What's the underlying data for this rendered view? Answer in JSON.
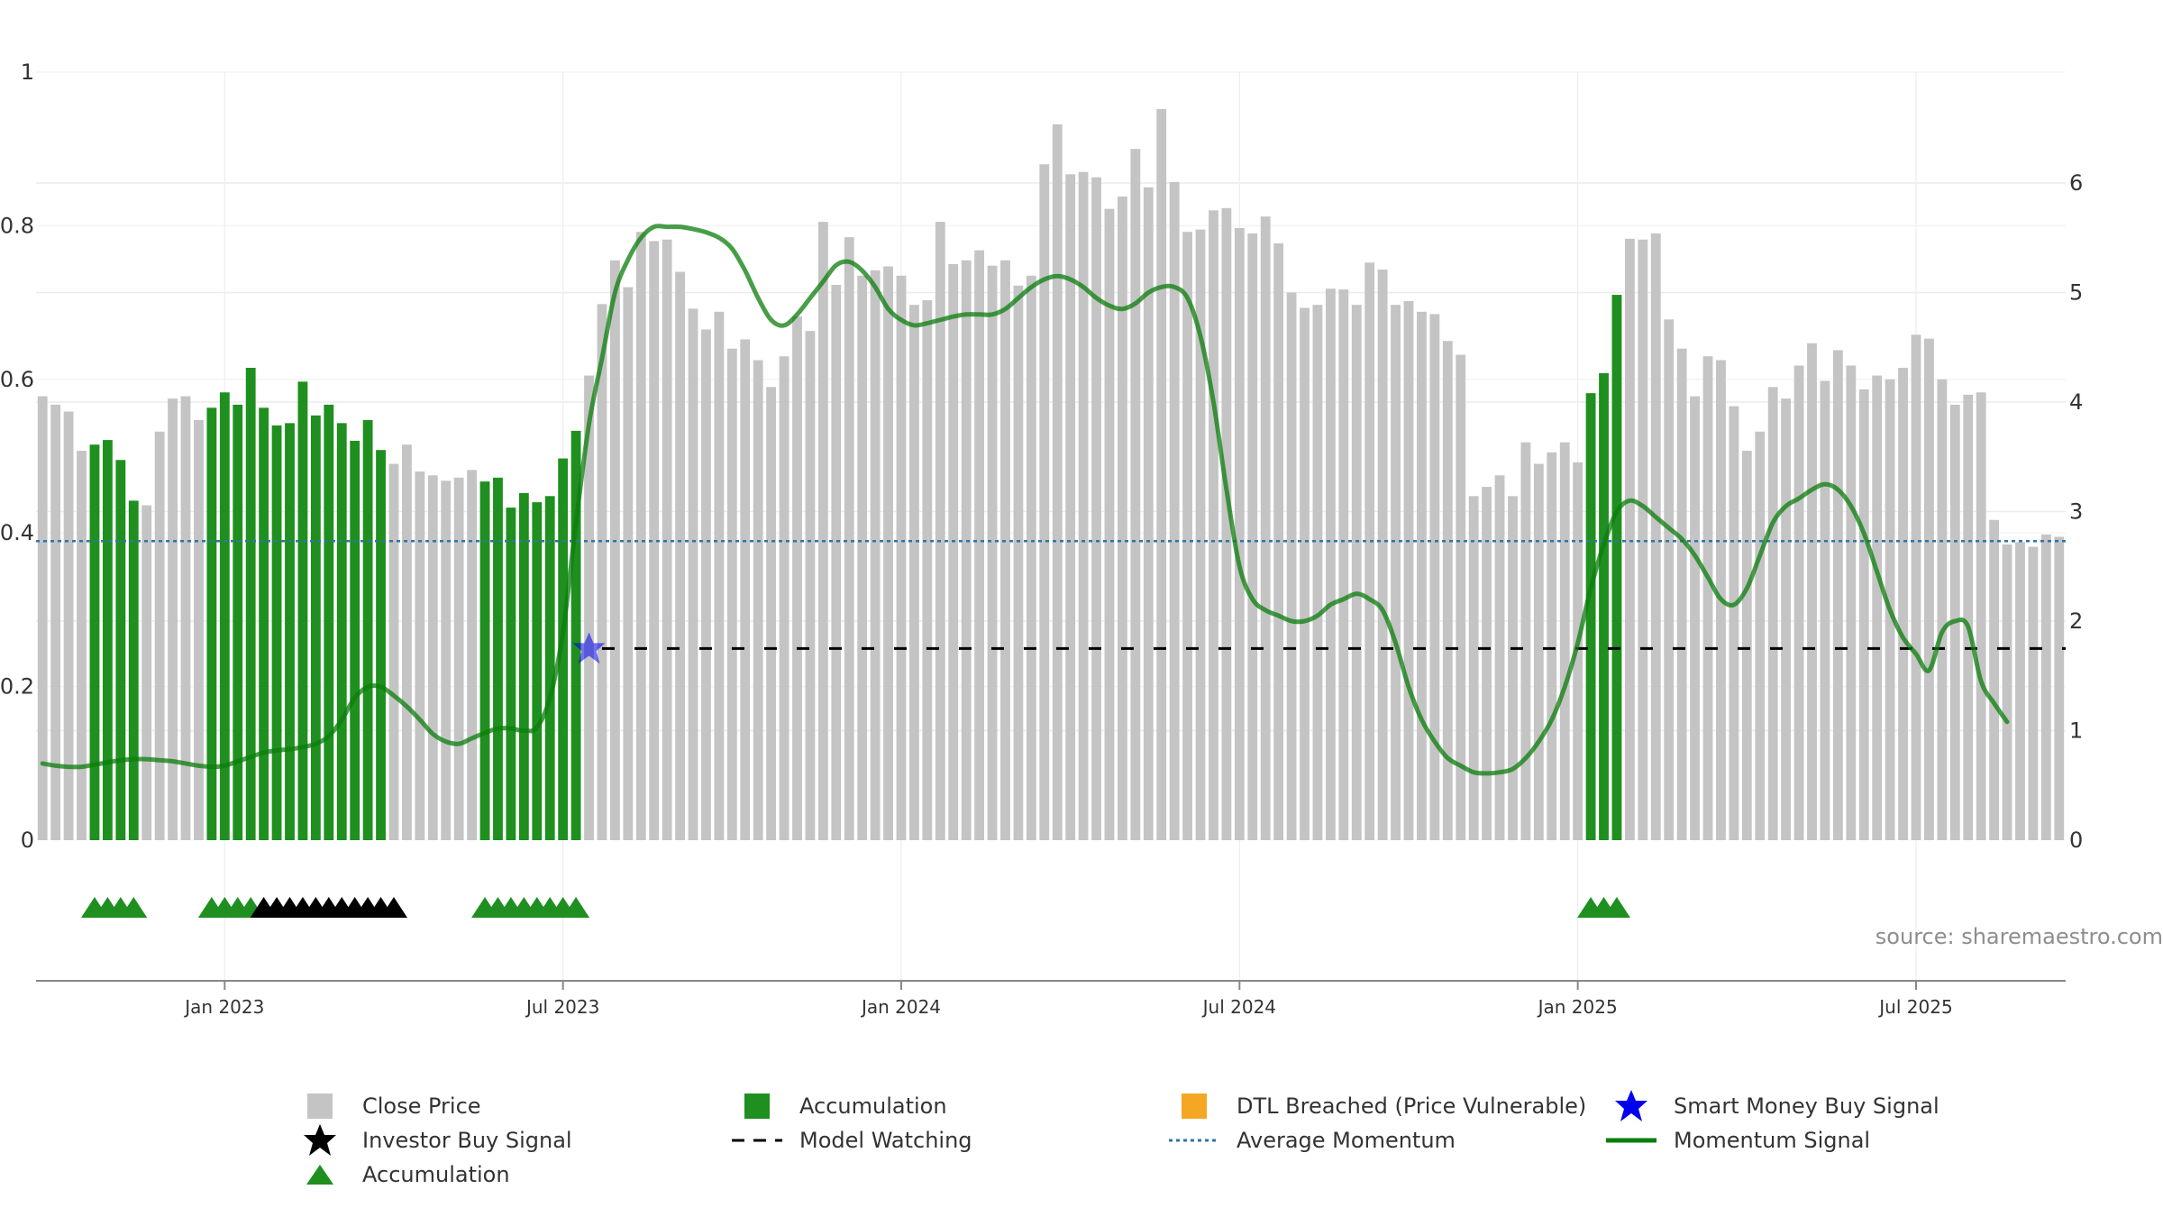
{
  "source_text": "source: sharemaestro.com",
  "colors": {
    "close_price": "#c4c4c4",
    "accumulation": "#1f8f1f",
    "dtl_breached": "#f5a623",
    "smart_money": "#0000ee",
    "investor": "#000000",
    "average_momentum": "#2e75a8",
    "momentum": "#0b7d0b",
    "model_watching": "#000000"
  },
  "legend": [
    {
      "label": "Close Price",
      "icon": "gray-square-icon"
    },
    {
      "label": "Accumulation",
      "icon": "green-square-icon"
    },
    {
      "label": "DTL Breached (Price Vulnerable)",
      "icon": "orange-square-icon"
    },
    {
      "label": "Smart Money Buy Signal",
      "icon": "blue-star-icon"
    },
    {
      "label": "Investor Buy Signal",
      "icon": "black-star-icon"
    },
    {
      "label": "Model Watching",
      "icon": "dashed-line-icon"
    },
    {
      "label": "Average Momentum",
      "icon": "dotted-line-icon"
    },
    {
      "label": "Momentum Signal",
      "icon": "solid-line-icon"
    },
    {
      "label": "Accumulation",
      "icon": "green-triangle-icon"
    }
  ],
  "chart_data": {
    "type": "bar",
    "x_axis": {
      "ticks": [
        "Jan 2023",
        "Jul 2023",
        "Jan 2024",
        "Jul 2024",
        "Jan 2025",
        "Jul 2025"
      ],
      "tick_bar_index": [
        14,
        40,
        66,
        92,
        118,
        144
      ]
    },
    "y_left": {
      "range": [
        0,
        1
      ],
      "ticks": [
        "0",
        "0.2",
        "0.4",
        "0.6",
        "0.8",
        "1"
      ]
    },
    "y_right": {
      "range": [
        0,
        7
      ],
      "ticks": [
        "0",
        "1",
        "2",
        "3",
        "4",
        "5",
        "6"
      ]
    },
    "grid": true,
    "legend_position": "bottom",
    "close_price": [
      0.578,
      0.567,
      0.558,
      0.507,
      0.515,
      0.521,
      0.495,
      0.442,
      0.436,
      0.532,
      0.575,
      0.578,
      0.547,
      0.563,
      0.583,
      0.567,
      0.615,
      0.563,
      0.54,
      0.543,
      0.597,
      0.553,
      0.567,
      0.543,
      0.52,
      0.547,
      0.508,
      0.49,
      0.515,
      0.48,
      0.475,
      0.468,
      0.472,
      0.482,
      0.467,
      0.472,
      0.433,
      0.452,
      0.44,
      0.448,
      0.497,
      0.533,
      0.605,
      0.698,
      0.755,
      0.72,
      0.792,
      0.78,
      0.782,
      0.74,
      0.692,
      0.665,
      0.688,
      0.64,
      0.652,
      0.625,
      0.59,
      0.63,
      0.682,
      0.663,
      0.805,
      0.723,
      0.785,
      0.735,
      0.742,
      0.747,
      0.735,
      0.697,
      0.703,
      0.805,
      0.75,
      0.755,
      0.768,
      0.748,
      0.755,
      0.722,
      0.735,
      0.88,
      0.932,
      0.867,
      0.87,
      0.863,
      0.822,
      0.838,
      0.9,
      0.85,
      0.952,
      0.857,
      0.792,
      0.795,
      0.82,
      0.823,
      0.797,
      0.79,
      0.812,
      0.777,
      0.713,
      0.693,
      0.697,
      0.718,
      0.717,
      0.697,
      0.752,
      0.743,
      0.697,
      0.702,
      0.688,
      0.685,
      0.65,
      0.632,
      0.448,
      0.46,
      0.475,
      0.448,
      0.518,
      0.49,
      0.505,
      0.518,
      0.492,
      0.582,
      0.608,
      0.71,
      0.783,
      0.782,
      0.79,
      0.678,
      0.64,
      0.578,
      0.63,
      0.625,
      0.565,
      0.507,
      0.532,
      0.59,
      0.575,
      0.618,
      0.647,
      0.598,
      0.638,
      0.618,
      0.587,
      0.605,
      0.6,
      0.615,
      0.658,
      0.653,
      0.6,
      0.567,
      0.58,
      0.583,
      0.417,
      0.385,
      0.388,
      0.382,
      0.398,
      0.395
    ],
    "accumulation_bar_indices": [
      4,
      5,
      6,
      7,
      13,
      14,
      15,
      16,
      17,
      18,
      19,
      20,
      21,
      22,
      23,
      24,
      25,
      26,
      34,
      35,
      36,
      37,
      38,
      39,
      40,
      41,
      119,
      120,
      121
    ],
    "momentum_signal": [
      0.7,
      0.68,
      0.67,
      0.67,
      0.69,
      0.71,
      0.73,
      0.74,
      0.74,
      0.73,
      0.72,
      0.7,
      0.68,
      0.67,
      0.68,
      0.72,
      0.76,
      0.8,
      0.82,
      0.83,
      0.85,
      0.88,
      0.95,
      1.1,
      1.3,
      1.4,
      1.4,
      1.32,
      1.22,
      1.1,
      0.97,
      0.9,
      0.88,
      0.93,
      0.98,
      1.02,
      1.02,
      1.0,
      1.03,
      1.3,
      1.9,
      2.9,
      3.8,
      4.4,
      5.0,
      5.3,
      5.5,
      5.6,
      5.6,
      5.6,
      5.58,
      5.55,
      5.5,
      5.4,
      5.2,
      4.95,
      4.75,
      4.7,
      4.8,
      4.95,
      5.1,
      5.25,
      5.28,
      5.2,
      5.05,
      4.85,
      4.75,
      4.7,
      4.72,
      4.75,
      4.78,
      4.8,
      4.8,
      4.8,
      4.85,
      4.95,
      5.05,
      5.12,
      5.15,
      5.12,
      5.05,
      4.95,
      4.88,
      4.85,
      4.9,
      5.0,
      5.05,
      5.05,
      4.95,
      4.6,
      4.0,
      3.2,
      2.5,
      2.2,
      2.1,
      2.05,
      2.0,
      2.0,
      2.05,
      2.15,
      2.2,
      2.25,
      2.2,
      2.1,
      1.8,
      1.4,
      1.1,
      0.9,
      0.75,
      0.68,
      0.62,
      0.61,
      0.62,
      0.65,
      0.75,
      0.9,
      1.1,
      1.4,
      1.8,
      2.3,
      2.7,
      3.0,
      3.1,
      3.05,
      2.95,
      2.85,
      2.75,
      2.6,
      2.4,
      2.2,
      2.15,
      2.3,
      2.6,
      2.9,
      3.05,
      3.12,
      3.2,
      3.25,
      3.2,
      3.05,
      2.8,
      2.45,
      2.1,
      1.85,
      1.7,
      1.55,
      1.9,
      2.0,
      1.95,
      1.45,
      1.25,
      1.08
    ],
    "smart_money_buy_signal": {
      "bar_index": 42,
      "value": 1.75
    },
    "model_watching": {
      "value": 1.75,
      "from_bar_index": 43
    },
    "average_momentum": 2.73,
    "accumulation_markers": [
      4,
      5,
      6,
      7,
      13,
      14,
      15,
      16,
      34,
      35,
      36,
      37,
      38,
      39,
      40,
      41,
      119,
      120,
      121
    ],
    "investor_buy_markers": [
      17,
      18,
      19,
      20,
      21,
      22,
      23,
      24,
      25,
      26,
      27
    ]
  }
}
